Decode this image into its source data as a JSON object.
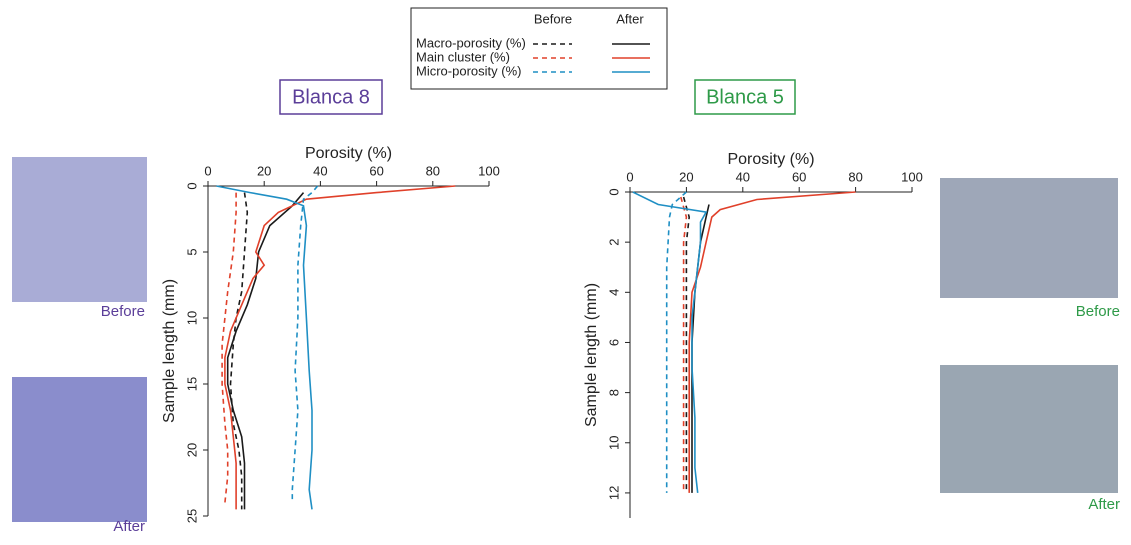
{
  "legend": {
    "columns": [
      "Before",
      "After"
    ],
    "rows": [
      {
        "label": "Macro-porosity (%)",
        "color": "#1a1a1a"
      },
      {
        "label": "Main cluster (%)",
        "color": "#e0402a"
      },
      {
        "label": "Micro-porosity (%)",
        "color": "#1f8fc4"
      }
    ]
  },
  "chart_data": [
    {
      "type": "line",
      "title": "Blanca 8",
      "title_color": "#5b3e99",
      "image_labels": [
        "Before",
        "After"
      ],
      "xlabel": "Porosity (%)",
      "ylabel": "Sample length (mm)",
      "y_inverted": true,
      "xlim": [
        0,
        100
      ],
      "xticks": [
        0,
        20,
        40,
        60,
        80,
        100
      ],
      "ylim": [
        0,
        25
      ],
      "yticks": [
        0,
        5,
        10,
        15,
        20,
        25
      ],
      "series": [
        {
          "color": "#1a1a1a",
          "linestyle": "dashed",
          "x": [
            13,
            14,
            13,
            12,
            10,
            9,
            8,
            9,
            11,
            12,
            12
          ],
          "y": [
            0.5,
            2,
            5,
            8,
            10,
            12,
            15,
            18,
            20,
            22,
            24.5
          ]
        },
        {
          "color": "#1a1a1a",
          "linestyle": "solid",
          "x": [
            34,
            30,
            22,
            18,
            17,
            14,
            10,
            7,
            7,
            9,
            12,
            13,
            13,
            13
          ],
          "y": [
            0.5,
            1.5,
            3,
            5,
            7,
            9,
            11,
            13,
            15,
            17,
            19,
            21,
            23,
            24.5
          ]
        },
        {
          "color": "#e0402a",
          "linestyle": "dashed",
          "x": [
            10,
            10,
            9,
            7,
            6,
            5,
            5,
            6,
            7,
            7,
            6
          ],
          "y": [
            0.5,
            2,
            5,
            8,
            10,
            12,
            15,
            18,
            20,
            22,
            24
          ]
        },
        {
          "color": "#e0402a",
          "linestyle": "solid",
          "x": [
            88,
            60,
            35,
            25,
            20,
            17,
            20,
            16,
            12,
            8,
            6,
            6,
            8,
            9,
            10,
            10,
            10
          ],
          "y": [
            0,
            0.5,
            1,
            2,
            3,
            5,
            6,
            7,
            9,
            11,
            13,
            15,
            17,
            19,
            21,
            23,
            24.5
          ]
        },
        {
          "color": "#1f8fc4",
          "linestyle": "dashed",
          "x": [
            39,
            37,
            34,
            33,
            32,
            32,
            31,
            32,
            31,
            30,
            30
          ],
          "y": [
            0,
            0.5,
            1,
            3,
            6,
            10,
            14,
            17,
            20,
            23,
            24
          ]
        },
        {
          "color": "#1f8fc4",
          "linestyle": "solid",
          "x": [
            3,
            15,
            28,
            34,
            35,
            34,
            35,
            36,
            37,
            37,
            36,
            37
          ],
          "y": [
            0,
            0.5,
            1,
            1.5,
            3,
            6,
            10,
            14,
            17,
            20,
            23,
            24.5
          ]
        }
      ]
    },
    {
      "type": "line",
      "title": "Blanca 5",
      "title_color": "#2e9a48",
      "image_labels": [
        "Before",
        "After"
      ],
      "xlabel": "Porosity (%)",
      "ylabel": "Sample length (mm)",
      "y_inverted": true,
      "xlim": [
        0,
        100
      ],
      "xticks": [
        0,
        20,
        40,
        60,
        80,
        100
      ],
      "ylim": [
        0,
        13
      ],
      "yticks": [
        0,
        2,
        4,
        6,
        8,
        10,
        12
      ],
      "series": [
        {
          "color": "#1a1a1a",
          "linestyle": "dashed",
          "x": [
            19,
            21,
            20,
            20,
            20,
            20,
            20,
            20
          ],
          "y": [
            0.2,
            1,
            2,
            4,
            6,
            8,
            10,
            12
          ]
        },
        {
          "color": "#1a1a1a",
          "linestyle": "solid",
          "x": [
            28,
            27,
            25,
            24,
            23,
            22,
            22,
            22,
            22
          ],
          "y": [
            0.5,
            1,
            2,
            3,
            4,
            6,
            8,
            10,
            12
          ]
        },
        {
          "color": "#e0402a",
          "linestyle": "dashed",
          "x": [
            18,
            20,
            19,
            19,
            19,
            19,
            19,
            19
          ],
          "y": [
            0.2,
            1,
            2,
            4,
            6,
            8,
            10,
            12
          ]
        },
        {
          "color": "#e0402a",
          "linestyle": "solid",
          "x": [
            80,
            45,
            32,
            29,
            27,
            25,
            22,
            21,
            21,
            21,
            21
          ],
          "y": [
            0,
            0.3,
            0.7,
            1,
            2,
            3,
            4,
            6,
            8,
            10,
            12
          ]
        },
        {
          "color": "#1f8fc4",
          "linestyle": "dashed",
          "x": [
            20,
            15,
            14,
            13,
            13,
            13,
            13
          ],
          "y": [
            0,
            0.5,
            1,
            3,
            6,
            9,
            12
          ]
        },
        {
          "color": "#1f8fc4",
          "linestyle": "solid",
          "x": [
            1,
            10,
            27,
            25,
            25,
            24,
            22,
            22,
            23,
            23,
            24
          ],
          "y": [
            0,
            0.5,
            0.8,
            1.2,
            2,
            3,
            5,
            7,
            9,
            11,
            12
          ]
        }
      ]
    }
  ]
}
